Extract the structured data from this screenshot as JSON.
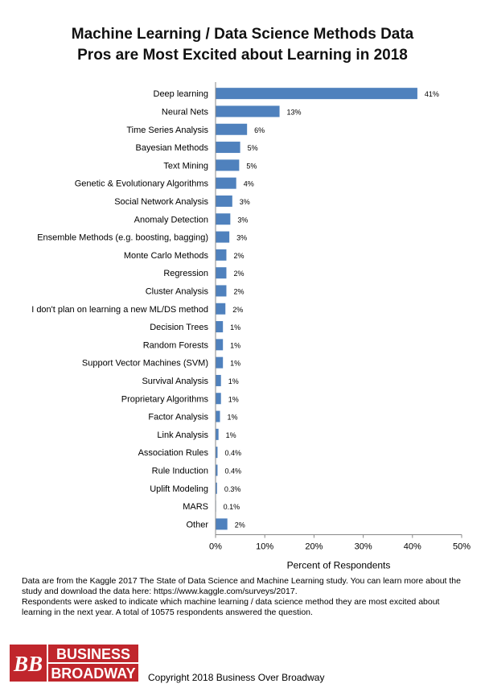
{
  "title_line1": "Machine Learning / Data Science Methods Data",
  "title_line2": "Pros are Most Excited about Learning in 2018",
  "chart_data": {
    "type": "bar",
    "orientation": "horizontal",
    "title": "Machine Learning / Data Science Methods Data Pros are Most Excited about Learning in 2018",
    "xlabel": "Percent of Respondents",
    "ylabel": "",
    "xlim": [
      0,
      50
    ],
    "xticks": [
      "0%",
      "10%",
      "20%",
      "30%",
      "40%",
      "50%"
    ],
    "grid": false,
    "bar_color": "#4f81bd",
    "categories": [
      "Deep learning",
      "Neural Nets",
      "Time Series Analysis",
      "Bayesian Methods",
      "Text Mining",
      "Genetic & Evolutionary Algorithms",
      "Social Network Analysis",
      "Anomaly Detection",
      "Ensemble Methods (e.g. boosting, bagging)",
      "Monte Carlo Methods",
      "Regression",
      "Cluster Analysis",
      "I don't plan on learning a new ML/DS method",
      "Decision Trees",
      "Random Forests",
      "Support Vector Machines (SVM)",
      "Survival Analysis",
      "Proprietary Algorithms",
      "Factor Analysis",
      "Link Analysis",
      "Association Rules",
      "Rule Induction",
      "Uplift Modeling",
      "MARS",
      "Other"
    ],
    "values": [
      41,
      13,
      6.4,
      5,
      4.8,
      4.2,
      3.4,
      3,
      2.8,
      2.2,
      2.2,
      2.2,
      2,
      1.5,
      1.5,
      1.5,
      1.1,
      1.1,
      0.9,
      0.6,
      0.4,
      0.4,
      0.3,
      0.1,
      2.4
    ],
    "value_labels": [
      "41%",
      "13%",
      "6%",
      "5%",
      "5%",
      "4%",
      "3%",
      "3%",
      "3%",
      "2%",
      "2%",
      "2%",
      "2%",
      "1%",
      "1%",
      "1%",
      "1%",
      "1%",
      "1%",
      "1%",
      "0.4%",
      "0.4%",
      "0.3%",
      "0.1%",
      "2%"
    ]
  },
  "note_line1": "Data are from the Kaggle 2017 The State of Data Science and Machine Learning study. You can learn more about the study and download the data here: https://www.kaggle.com/surveys/2017.",
  "note_line2": "Respondents were asked to indicate which machine learning / data science method they are most excited about learning in the next year. A total of 10575 respondents answered the question.",
  "logo": {
    "mark": "BB",
    "word1": "BUSINESS",
    "word2": "BROADWAY",
    "color": "#c0262c"
  },
  "copyright": "Copyright 2018 Business Over Broadway"
}
